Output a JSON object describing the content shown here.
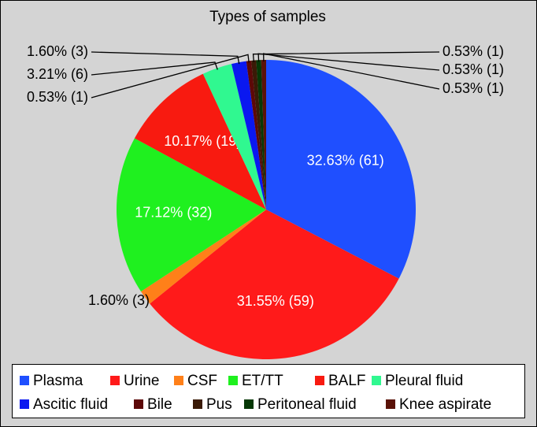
{
  "chart_data": {
    "type": "pie",
    "title": "Types of samples",
    "categories": [
      "Plasma",
      "Urine",
      "CSF",
      "ET/TT",
      "BALF",
      "Pleural fluid",
      "Ascitic fluid",
      "Bile",
      "Pus",
      "Peritoneal fluid",
      "Knee aspirate"
    ],
    "values": [
      32.63,
      31.55,
      1.6,
      17.12,
      10.17,
      3.21,
      1.6,
      0.53,
      0.53,
      0.53,
      0.53
    ],
    "value_labels": [
      "32.63% (61)",
      "31.55% (59)",
      "1.60% (3)",
      "17.12% (32)",
      "10.17% (19)",
      "3.21% (6)",
      "1.60% (3)",
      "0.53% (1)",
      "0.53% (1)",
      "0.53% (1)",
      "0.53% (1)"
    ],
    "colors": [
      "#1f4fff",
      "#ff1a1a",
      "#ff8019",
      "#1ff01f",
      "#f81a10",
      "#30f890",
      "#0a18f0",
      "#5c0808",
      "#3a1a06",
      "#063806",
      "#5a1208"
    ],
    "legend": "bottom"
  }
}
